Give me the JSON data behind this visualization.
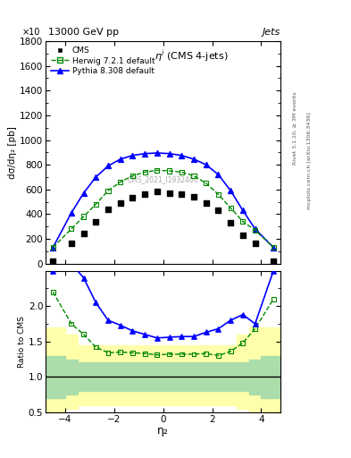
{
  "title_top": "13000 GeV pp",
  "title_right": "Jets",
  "plot_title": "$\\eta^i$ (CMS 4-jets)",
  "watermark": "CMS_2021_I1932460",
  "rivet_label": "Rivet 3.1.10, ≥ 3M events",
  "arxiv_label": "mcplots.cern.ch [arXiv:1306.3436]",
  "ylabel_main": "dσ/dη₂ [pb]",
  "ylabel_ratio": "Ratio to CMS",
  "xlabel": "η₂",
  "xlim": [
    -4.8,
    4.8
  ],
  "ylim_main": [
    0,
    1800
  ],
  "ylim_ratio": [
    0.5,
    2.5
  ],
  "yticks_main": [
    0,
    200,
    400,
    600,
    800,
    1000,
    1200,
    1400,
    1600,
    1800
  ],
  "yticks_ratio": [
    0.5,
    1.0,
    1.5,
    2.0
  ],
  "xticks": [
    -4,
    -2,
    0,
    2,
    4
  ],
  "cms_x": [
    -4.5,
    -3.75,
    -3.25,
    -2.75,
    -2.25,
    -1.75,
    -1.25,
    -0.75,
    -0.25,
    0.25,
    0.75,
    1.25,
    1.75,
    2.25,
    2.75,
    3.25,
    3.75,
    4.5
  ],
  "cms_y": [
    20,
    160,
    240,
    340,
    440,
    490,
    530,
    560,
    580,
    570,
    560,
    540,
    490,
    430,
    330,
    230,
    160,
    20
  ],
  "herwig_x": [
    -4.5,
    -3.75,
    -3.25,
    -2.75,
    -2.25,
    -1.75,
    -1.25,
    -0.75,
    -0.25,
    0.25,
    0.75,
    1.25,
    1.75,
    2.25,
    2.75,
    3.25,
    3.75,
    4.5
  ],
  "herwig_y": [
    130,
    280,
    380,
    480,
    590,
    660,
    710,
    740,
    755,
    750,
    740,
    710,
    650,
    560,
    450,
    340,
    270,
    130
  ],
  "pythia_x": [
    -4.5,
    -3.75,
    -3.25,
    -2.75,
    -2.25,
    -1.75,
    -1.25,
    -0.75,
    -0.25,
    0.25,
    0.75,
    1.25,
    1.75,
    2.25,
    2.75,
    3.25,
    3.75,
    4.5
  ],
  "pythia_y": [
    130,
    410,
    570,
    700,
    790,
    845,
    875,
    890,
    895,
    890,
    875,
    845,
    800,
    720,
    590,
    430,
    280,
    130
  ],
  "band_x": [
    -4.8,
    -4.25,
    -3.75,
    -3.25,
    -2.75,
    -2.25,
    -1.75,
    -1.25,
    -0.75,
    -0.25,
    0.25,
    0.75,
    1.25,
    1.75,
    2.25,
    2.75,
    3.25,
    3.75,
    4.25,
    4.8
  ],
  "green_upper": [
    1.3,
    1.3,
    1.25,
    1.2,
    1.2,
    1.2,
    1.2,
    1.2,
    1.2,
    1.2,
    1.2,
    1.2,
    1.2,
    1.2,
    1.2,
    1.2,
    1.2,
    1.25,
    1.3,
    1.3
  ],
  "green_lower": [
    0.7,
    0.7,
    0.75,
    0.8,
    0.8,
    0.8,
    0.8,
    0.8,
    0.8,
    0.8,
    0.8,
    0.8,
    0.8,
    0.8,
    0.8,
    0.8,
    0.8,
    0.75,
    0.7,
    0.7
  ],
  "yellow_upper": [
    1.7,
    1.7,
    1.6,
    1.45,
    1.45,
    1.45,
    1.45,
    1.45,
    1.45,
    1.45,
    1.45,
    1.45,
    1.45,
    1.45,
    1.45,
    1.45,
    1.6,
    1.7,
    1.7,
    1.7
  ],
  "yellow_lower": [
    0.45,
    0.45,
    0.55,
    0.6,
    0.6,
    0.6,
    0.6,
    0.6,
    0.6,
    0.6,
    0.6,
    0.6,
    0.6,
    0.6,
    0.6,
    0.6,
    0.55,
    0.45,
    0.45,
    0.45
  ],
  "herwig_ratio_x": [
    -4.5,
    -3.75,
    -3.25,
    -2.75,
    -2.25,
    -1.75,
    -1.25,
    -0.75,
    -0.25,
    0.25,
    0.75,
    1.25,
    1.75,
    2.25,
    2.75,
    3.25,
    3.75,
    4.5
  ],
  "herwig_ratio_y": [
    2.2,
    1.75,
    1.6,
    1.42,
    1.34,
    1.35,
    1.34,
    1.33,
    1.31,
    1.32,
    1.32,
    1.32,
    1.33,
    1.3,
    1.36,
    1.48,
    1.68,
    2.1
  ],
  "pythia_ratio_x": [
    -4.5,
    -3.75,
    -3.25,
    -2.75,
    -2.25,
    -1.75,
    -1.25,
    -0.75,
    -0.25,
    0.25,
    0.75,
    1.25,
    1.75,
    2.25,
    2.75,
    3.25,
    3.75,
    4.5
  ],
  "pythia_ratio_y": [
    2.5,
    2.6,
    2.4,
    2.05,
    1.8,
    1.73,
    1.65,
    1.6,
    1.55,
    1.56,
    1.57,
    1.57,
    1.63,
    1.68,
    1.8,
    1.88,
    1.75,
    2.5
  ],
  "cms_color": "black",
  "herwig_color": "#008800",
  "pythia_color": "blue",
  "green_color": "#aaddaa",
  "yellow_color": "#ffffaa",
  "bg_color": "white"
}
